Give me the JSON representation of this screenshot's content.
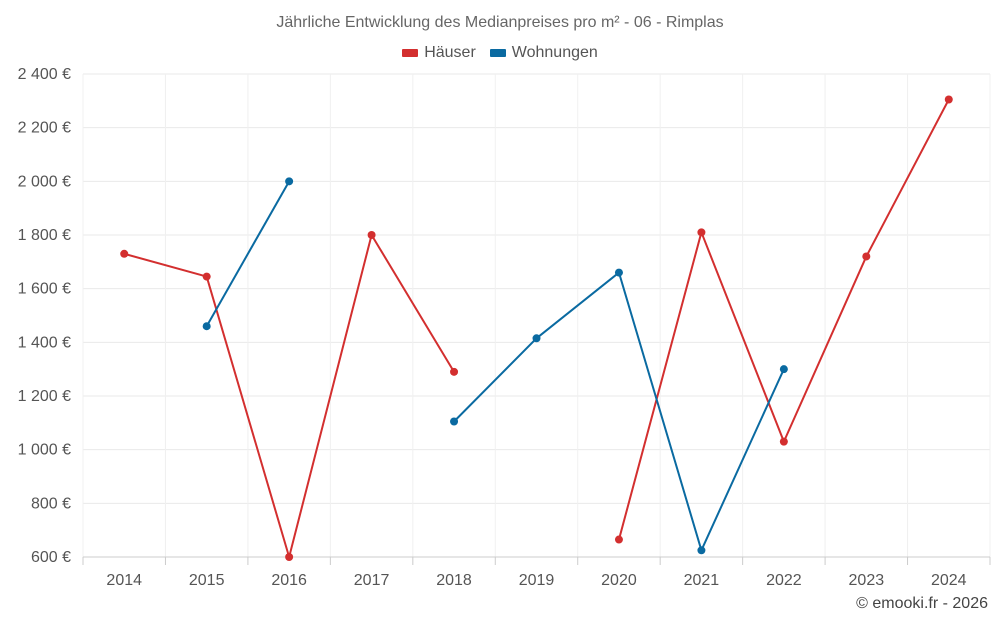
{
  "chart_data": {
    "type": "line",
    "title": "Jährliche Entwicklung des Medianpreises pro m² - 06 - Rimplas",
    "categories": [
      "2014",
      "2015",
      "2016",
      "2017",
      "2018",
      "2019",
      "2020",
      "2021",
      "2022",
      "2023",
      "2024"
    ],
    "ylim": [
      600,
      2400
    ],
    "yticks": [
      600,
      800,
      1000,
      1200,
      1400,
      1600,
      1800,
      2000,
      2200,
      2400
    ],
    "ytick_labels": [
      "600 €",
      "800 €",
      "1 000 €",
      "1 200 €",
      "1 400 €",
      "1 600 €",
      "1 800 €",
      "2 000 €",
      "2 200 €",
      "2 400 €"
    ],
    "xlabel": "",
    "ylabel": "",
    "grid": true,
    "legend_position": "top-center",
    "series": [
      {
        "name": "Häuser",
        "color": "#d32f2f",
        "values": [
          1730,
          1645,
          600,
          1800,
          1290,
          null,
          665,
          1810,
          1030,
          1720,
          2305
        ]
      },
      {
        "name": "Wohnungen",
        "color": "#0a6aa1",
        "values": [
          null,
          1460,
          2000,
          null,
          1105,
          1415,
          1660,
          625,
          1300,
          null,
          null
        ]
      }
    ]
  },
  "footer": {
    "credit": "© emooki.fr - 2026"
  }
}
